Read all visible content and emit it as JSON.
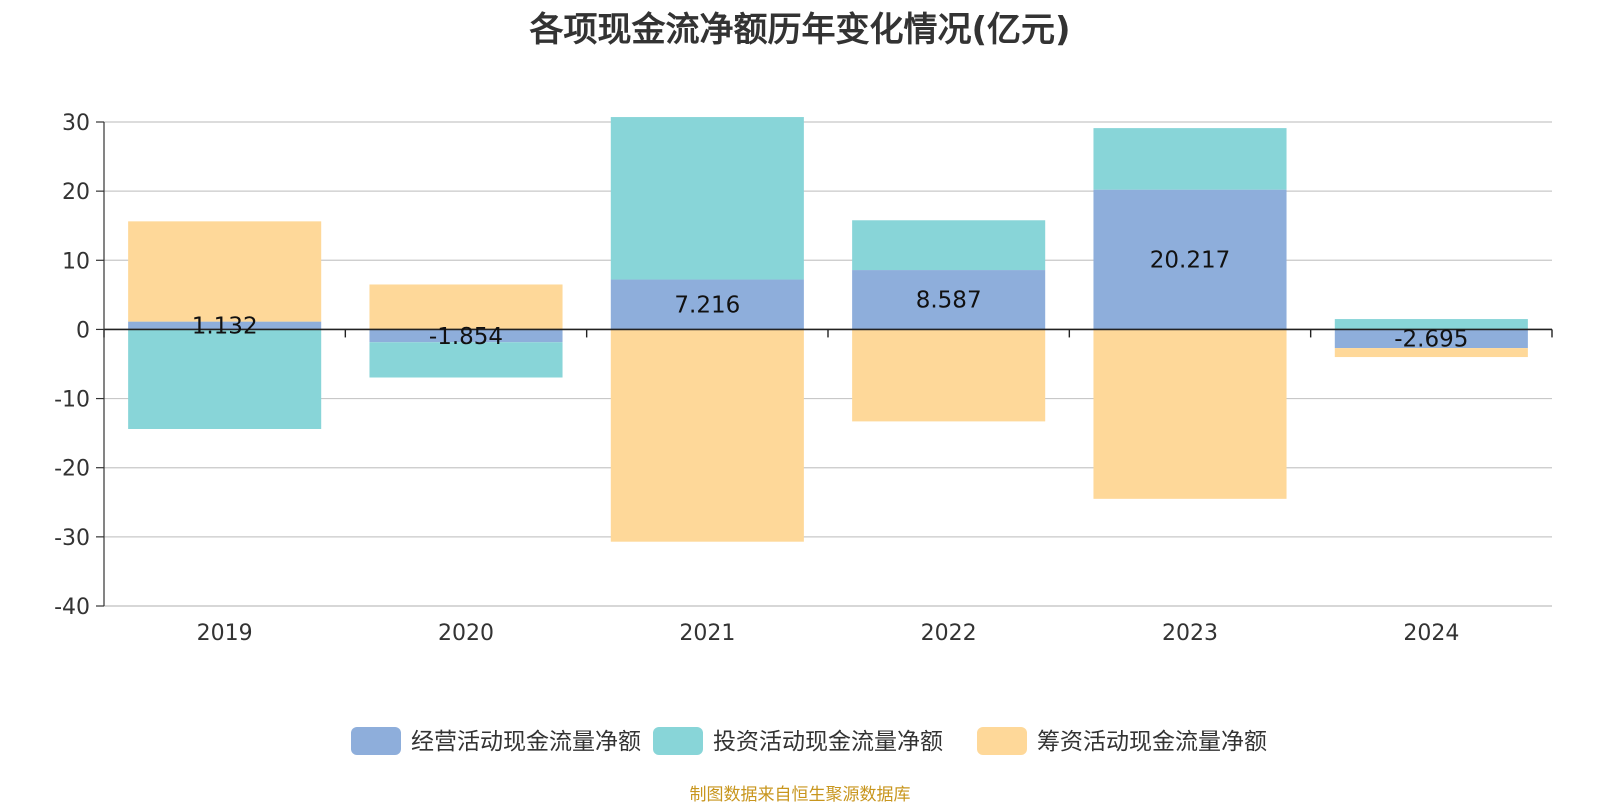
{
  "chart_data": {
    "type": "bar",
    "stacked": true,
    "title": "各项现金流净额历年变化情况(亿元)",
    "categories": [
      "2019",
      "2020",
      "2021",
      "2022",
      "2023",
      "2024"
    ],
    "series": [
      {
        "name": "经营活动现金流量净额",
        "color": "#8eaedb",
        "values": [
          1.132,
          -1.854,
          7.216,
          8.587,
          20.217,
          -2.695
        ],
        "labels": [
          "1.132",
          "-1.854",
          "7.216",
          "8.587",
          "20.217",
          "-2.695"
        ]
      },
      {
        "name": "投资活动现金流量净额",
        "color": "#88d5d8",
        "values": [
          -14.4,
          -5.1,
          23.5,
          7.2,
          8.9,
          1.5
        ]
      },
      {
        "name": "筹资活动现金流量净额",
        "color": "#fed899",
        "values": [
          14.5,
          6.5,
          -30.7,
          -13.3,
          -24.5,
          -1.3
        ]
      }
    ],
    "ylim": [
      -40,
      30
    ],
    "yticks": [
      "30",
      "20",
      "10",
      "0",
      "-10",
      "-20",
      "-30",
      "-40"
    ],
    "grid": true,
    "legend_position": "bottom"
  },
  "source_note": "制图数据来自恒生聚源数据库"
}
